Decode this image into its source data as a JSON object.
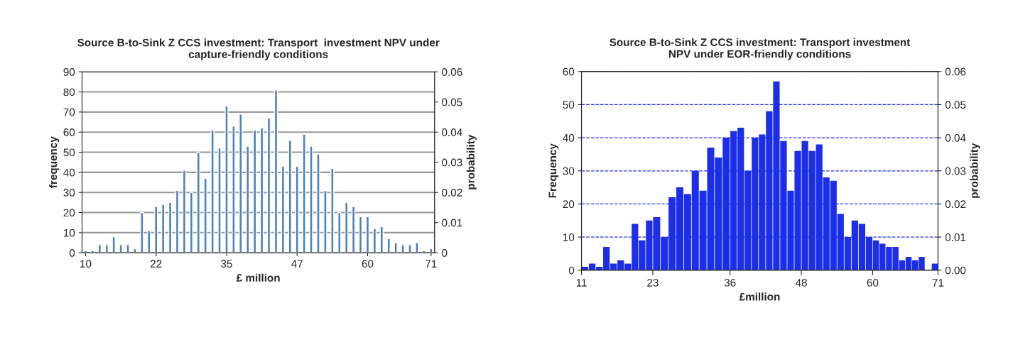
{
  "chart_data": [
    {
      "type": "bar",
      "title": "Source B-to-Sink Z CCS investment: Transport  investment NPV under\ncapture-friendly conditions",
      "xlabel": "£ million",
      "ylabel": "frequency",
      "y2label": "probability",
      "categories": [
        "10",
        null,
        null,
        null,
        null,
        null,
        null,
        null,
        null,
        null,
        "22",
        null,
        null,
        null,
        null,
        null,
        null,
        null,
        null,
        null,
        "35",
        null,
        null,
        null,
        null,
        null,
        null,
        null,
        null,
        null,
        "47",
        null,
        null,
        null,
        null,
        null,
        null,
        null,
        null,
        null,
        "60",
        null,
        null,
        null,
        null,
        null,
        null,
        null,
        null,
        "71"
      ],
      "values": [
        1,
        1,
        4,
        4,
        8,
        4,
        4,
        2,
        20,
        11,
        23,
        24,
        25,
        31,
        41,
        30,
        50,
        37,
        61,
        52,
        73,
        63,
        69,
        53,
        61,
        62,
        67,
        81,
        43,
        56,
        43,
        59,
        53,
        49,
        31,
        42,
        20,
        25,
        23,
        18,
        18,
        12,
        13,
        7,
        5,
        4,
        4,
        5,
        1,
        2
      ],
      "color": "#4f81bd",
      "ylim": [
        0,
        90
      ],
      "yticks": [
        0,
        10,
        20,
        30,
        40,
        50,
        60,
        70,
        80,
        90
      ],
      "y2lim": [
        0,
        0.06
      ],
      "y2ticks": [
        0,
        0.01,
        0.02,
        0.03,
        0.04,
        0.05,
        0.06
      ],
      "grid": "y"
    },
    {
      "type": "histogram",
      "title": "Source B-to-Sink Z CCS investment: Transport investment\nNPV under EOR-friendly conditions",
      "xlabel": "£million",
      "ylabel": "Frequency",
      "y2label": "probability",
      "bins": [
        11,
        12.2,
        13.4,
        14.6,
        15.8,
        17,
        18.2,
        19.4,
        20.6,
        21.8,
        23,
        24.3,
        25.6,
        26.9,
        28.2,
        29.5,
        30.8,
        32.1,
        33.4,
        34.7,
        36,
        37.2,
        38.4,
        39.6,
        40.8,
        42,
        43.2,
        44.4,
        45.6,
        46.8,
        48,
        49.2,
        50.4,
        51.6,
        52.8,
        54,
        55.2,
        56.4,
        57.6,
        58.8,
        60,
        61.1,
        62.2,
        63.3,
        64.4,
        65.5,
        66.6,
        67.7,
        68.8,
        69.9,
        71
      ],
      "values": [
        1,
        2,
        1,
        7,
        2,
        3,
        2,
        14,
        9,
        15,
        16,
        10,
        22,
        25,
        23,
        30,
        24,
        37,
        34,
        40,
        42,
        43,
        30,
        40,
        41,
        48,
        57,
        39,
        24,
        36,
        39,
        36,
        38,
        28,
        27,
        17,
        10,
        15,
        14,
        10,
        9,
        8,
        7,
        7,
        3,
        4,
        3,
        4,
        null,
        2
      ],
      "color": "#1c2ee8",
      "xlim": [
        11,
        71
      ],
      "xticks": [
        11,
        23,
        36,
        48,
        60,
        71
      ],
      "ylim": [
        0,
        60
      ],
      "yticks": [
        0,
        10,
        20,
        30,
        40,
        50,
        60
      ],
      "y2lim": [
        0,
        0.06
      ],
      "y2ticks": [
        {
          "value": 0,
          "label": "0.00"
        },
        {
          "value": 0.01,
          "label": "0.01"
        },
        {
          "value": 0.02,
          "label": "0.02"
        },
        {
          "value": 0.03,
          "label": "0.03"
        },
        {
          "value": 0.04,
          "label": "0.04"
        },
        {
          "value": 0.05,
          "label": "0.05"
        },
        {
          "value": 0.06,
          "label": "0.06"
        }
      ],
      "grid": "y"
    }
  ]
}
